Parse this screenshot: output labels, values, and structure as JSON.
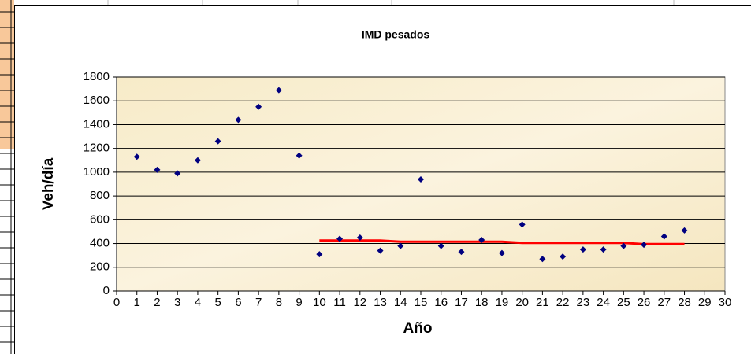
{
  "chart_data": {
    "type": "scatter",
    "title": "IMD pesados",
    "x_label": "Año",
    "y_label": "Veh/día",
    "x": [
      1,
      2,
      3,
      4,
      5,
      6,
      7,
      8,
      9,
      10,
      11,
      12,
      13,
      14,
      15,
      16,
      17,
      18,
      19,
      20,
      21,
      22,
      23,
      24,
      25,
      26,
      27,
      28
    ],
    "series": [
      {
        "color": "#000080",
        "values": [
          1130,
          1020,
          990,
          1100,
          1260,
          1440,
          1550,
          1690,
          1140,
          310,
          440,
          450,
          340,
          380,
          940,
          380,
          330,
          430,
          320,
          560,
          270,
          290,
          350,
          350,
          380,
          390,
          460,
          510
        ]
      }
    ],
    "trend": {
      "color": "#ff0000",
      "x": [
        10,
        13,
        14,
        19,
        20,
        25,
        26,
        28
      ],
      "values": [
        425,
        425,
        415,
        415,
        405,
        405,
        395,
        395
      ]
    },
    "xlim": [
      0,
      30
    ],
    "xticks": [
      0,
      1,
      2,
      3,
      4,
      5,
      6,
      7,
      8,
      9,
      10,
      11,
      12,
      13,
      14,
      15,
      16,
      17,
      18,
      19,
      20,
      21,
      22,
      23,
      24,
      25,
      26,
      27,
      28,
      29,
      30
    ],
    "ylim": [
      0,
      1800
    ],
    "yticks": [
      0,
      200,
      400,
      600,
      800,
      1000,
      1200,
      1400,
      1600,
      1800
    ],
    "grid": true
  }
}
